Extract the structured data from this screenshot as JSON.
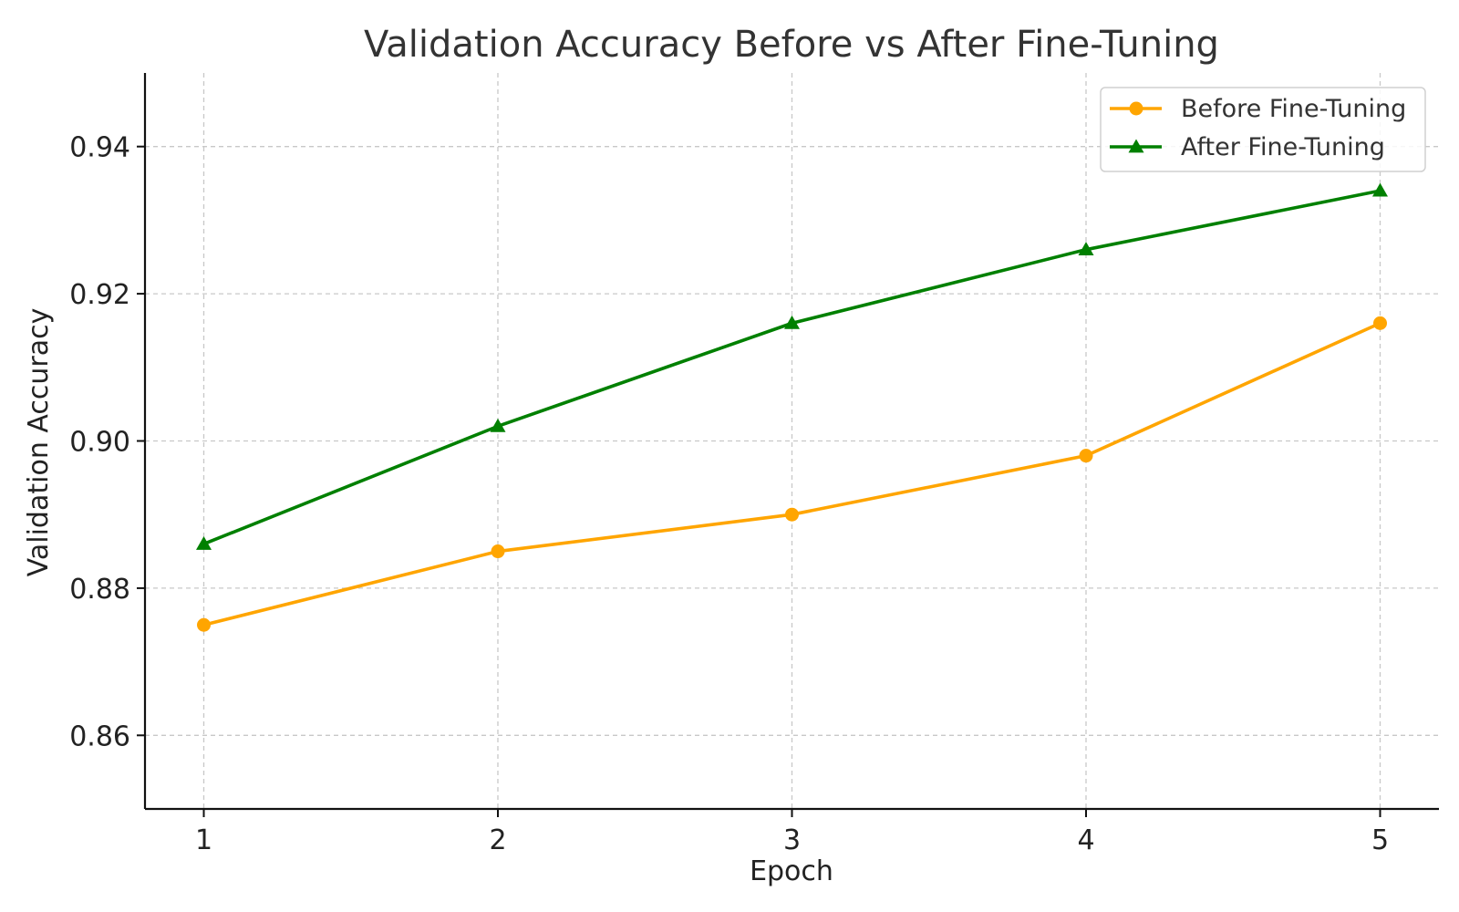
{
  "chart_data": {
    "type": "line",
    "title": "Validation Accuracy Before vs After Fine-Tuning",
    "xlabel": "Epoch",
    "ylabel": "Validation Accuracy",
    "x": [
      1,
      2,
      3,
      4,
      5
    ],
    "xlim": [
      0.8,
      5.2
    ],
    "ylim": [
      0.85,
      0.95
    ],
    "xticks": [
      1,
      2,
      3,
      4,
      5
    ],
    "xtick_labels": [
      "1",
      "2",
      "3",
      "4",
      "5"
    ],
    "yticks": [
      0.86,
      0.88,
      0.9,
      0.92,
      0.94
    ],
    "ytick_labels": [
      "0.86",
      "0.88",
      "0.90",
      "0.92",
      "0.94"
    ],
    "grid": true,
    "grid_style": "dashed",
    "legend_position": "top-right",
    "series": [
      {
        "name": "Before Fine-Tuning",
        "values": [
          0.875,
          0.885,
          0.89,
          0.898,
          0.916
        ],
        "color": "#FFA500",
        "marker": "circle"
      },
      {
        "name": "After Fine-Tuning",
        "values": [
          0.886,
          0.902,
          0.916,
          0.926,
          0.934
        ],
        "color": "#008000",
        "marker": "triangle"
      }
    ]
  }
}
